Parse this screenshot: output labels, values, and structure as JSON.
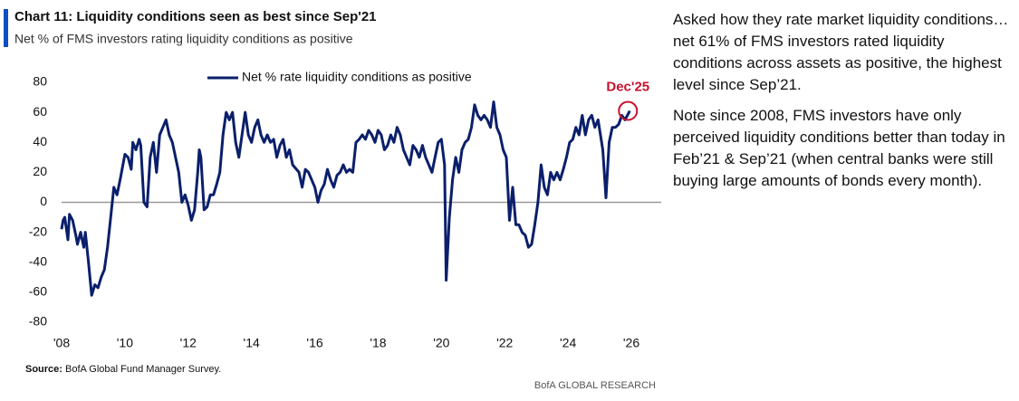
{
  "chart_data": {
    "type": "line",
    "title": "Chart 11: Liquidity conditions seen as best since Sep'21",
    "subtitle": "Net % of FMS investors rating liquidity conditions as positive",
    "source_label": "Source:",
    "source": "BofA Global Fund Manager Survey.",
    "footer": "BofA GLOBAL RESEARCH",
    "annotation": "Dec'25",
    "legend_position": "top",
    "commentary": [
      "Asked how they rate market liquidity conditions…net 61% of FMS investors rated liquidity conditions across assets as positive, the highest level since Sep’21.",
      "Note since 2008, FMS investors have only perceived liquidity conditions better than today in Feb’21 & Sep’21 (when central banks were still buying large amounts of bonds every month)."
    ],
    "xlim": [
      2008,
      2026.3
    ],
    "xticks": [
      {
        "value": 2008,
        "label": "'08"
      },
      {
        "value": 2010,
        "label": "'10"
      },
      {
        "value": 2012,
        "label": "'12"
      },
      {
        "value": 2014,
        "label": "'14"
      },
      {
        "value": 2016,
        "label": "'16"
      },
      {
        "value": 2018,
        "label": "'18"
      },
      {
        "value": 2020,
        "label": "'20"
      },
      {
        "value": 2022,
        "label": "'22"
      },
      {
        "value": 2024,
        "label": "'24"
      },
      {
        "value": 2026,
        "label": "'26"
      }
    ],
    "ylim": [
      -80,
      80
    ],
    "yticks": [
      -80,
      -60,
      -40,
      -20,
      0,
      20,
      40,
      60,
      80
    ],
    "x": [
      2008.0,
      2008.05,
      2008.1,
      2008.2,
      2008.25,
      2008.35,
      2008.45,
      2008.5,
      2008.6,
      2008.7,
      2008.75,
      2008.85,
      2008.95,
      2009.05,
      2009.15,
      2009.25,
      2009.35,
      2009.45,
      2009.55,
      2009.65,
      2009.75,
      2009.85,
      2010.0,
      2010.1,
      2010.2,
      2010.25,
      2010.35,
      2010.45,
      2010.5,
      2010.6,
      2010.7,
      2010.8,
      2010.9,
      2011.0,
      2011.1,
      2011.2,
      2011.3,
      2011.4,
      2011.5,
      2011.6,
      2011.7,
      2011.8,
      2011.9,
      2012.0,
      2012.1,
      2012.2,
      2012.3,
      2012.35,
      2012.4,
      2012.5,
      2012.6,
      2012.7,
      2012.8,
      2012.9,
      2013.0,
      2013.1,
      2013.2,
      2013.3,
      2013.4,
      2013.5,
      2013.6,
      2013.7,
      2013.8,
      2013.9,
      2014.0,
      2014.1,
      2014.2,
      2014.3,
      2014.4,
      2014.5,
      2014.6,
      2014.7,
      2014.8,
      2014.9,
      2015.0,
      2015.1,
      2015.2,
      2015.3,
      2015.5,
      2015.6,
      2015.7,
      2015.8,
      2016.0,
      2016.1,
      2016.2,
      2016.3,
      2016.4,
      2016.5,
      2016.6,
      2016.7,
      2016.8,
      2016.9,
      2017.0,
      2017.1,
      2017.2,
      2017.3,
      2017.4,
      2017.5,
      2017.6,
      2017.7,
      2017.8,
      2017.9,
      2018.0,
      2018.1,
      2018.2,
      2018.3,
      2018.4,
      2018.5,
      2018.6,
      2018.7,
      2018.8,
      2018.9,
      2019.0,
      2019.1,
      2019.2,
      2019.3,
      2019.4,
      2019.5,
      2019.6,
      2019.7,
      2019.8,
      2019.9,
      2020.0,
      2020.1,
      2020.15,
      2020.25,
      2020.35,
      2020.45,
      2020.55,
      2020.65,
      2020.75,
      2020.85,
      2020.95,
      2021.05,
      2021.15,
      2021.25,
      2021.35,
      2021.45,
      2021.55,
      2021.65,
      2021.75,
      2021.85,
      2021.95,
      2022.05,
      2022.15,
      2022.25,
      2022.35,
      2022.45,
      2022.55,
      2022.65,
      2022.75,
      2022.85,
      2022.95,
      2023.05,
      2023.15,
      2023.25,
      2023.35,
      2023.45,
      2023.55,
      2023.65,
      2023.75,
      2023.85,
      2023.95,
      2024.05,
      2024.15,
      2024.25,
      2024.35,
      2024.45,
      2024.55,
      2024.65,
      2024.75,
      2024.85,
      2024.95,
      2025.1,
      2025.2,
      2025.3,
      2025.4,
      2025.5,
      2025.6,
      2025.7,
      2025.8,
      2025.95
    ],
    "series": [
      {
        "name": "Net % rate liquidity conditions as positive",
        "color": "#0b1f6b",
        "values": [
          -18,
          -12,
          -10,
          -25,
          -8,
          -12,
          -22,
          -28,
          -20,
          -30,
          -20,
          -40,
          -62,
          -55,
          -57,
          -50,
          -45,
          -30,
          -10,
          10,
          5,
          15,
          32,
          30,
          22,
          40,
          35,
          42,
          38,
          0,
          -3,
          30,
          40,
          20,
          45,
          50,
          55,
          45,
          40,
          30,
          20,
          0,
          5,
          -2,
          -12,
          -5,
          20,
          35,
          30,
          -5,
          -3,
          5,
          5,
          12,
          20,
          45,
          60,
          55,
          60,
          40,
          30,
          45,
          60,
          45,
          40,
          50,
          55,
          45,
          40,
          45,
          40,
          42,
          30,
          38,
          42,
          30,
          35,
          25,
          20,
          10,
          22,
          20,
          10,
          0,
          8,
          12,
          22,
          15,
          10,
          18,
          20,
          25,
          20,
          22,
          20,
          40,
          42,
          45,
          42,
          48,
          45,
          40,
          48,
          45,
          35,
          38,
          45,
          40,
          50,
          45,
          35,
          30,
          25,
          38,
          35,
          30,
          38,
          30,
          25,
          20,
          30,
          40,
          42,
          25,
          -52,
          -10,
          15,
          30,
          20,
          35,
          40,
          42,
          50,
          65,
          58,
          55,
          58,
          55,
          50,
          67,
          50,
          45,
          35,
          30,
          -12,
          10,
          -15,
          -15,
          -20,
          -22,
          -30,
          -28,
          -15,
          0,
          25,
          10,
          5,
          20,
          15,
          20,
          15,
          22,
          30,
          40,
          42,
          50,
          45,
          58,
          45,
          55,
          58,
          50,
          55,
          35,
          3,
          40,
          50,
          50,
          52,
          58,
          55,
          61
        ]
      }
    ]
  }
}
